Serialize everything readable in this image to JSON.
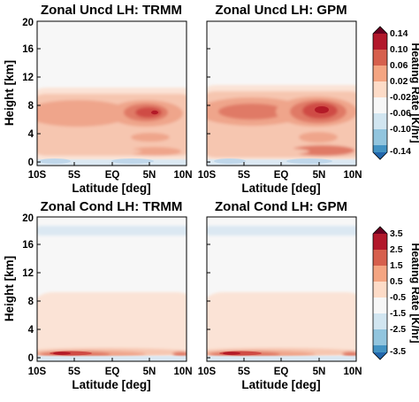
{
  "chart_data": [
    {
      "type": "heatmap",
      "panel": "top-left",
      "title": "Zonal Uncd LH: TRMM",
      "xlabel": "Latitude [deg]",
      "ylabel": "Height [km]",
      "x_ticks": [
        "10S",
        "5S",
        "EQ",
        "5N",
        "10N"
      ],
      "y_ticks": [
        "0",
        "4",
        "8",
        "12",
        "16",
        "20"
      ],
      "xlim": [
        -10,
        10
      ],
      "ylim": [
        -0.5,
        20
      ],
      "units": "K/hr",
      "features": [
        {
          "x": 4.5,
          "y": 7.5,
          "value": 0.13
        },
        {
          "x": -3.5,
          "y": 7.5,
          "value": 0.07
        },
        {
          "x": 5.0,
          "y": 4.0,
          "value": 0.07
        },
        {
          "x": 2.0,
          "y": 2.0,
          "value": 0.05
        }
      ]
    },
    {
      "type": "heatmap",
      "panel": "top-right",
      "title": "Zonal Uncd LH: GPM",
      "xlabel": "Latitude [deg]",
      "ylabel": "",
      "x_ticks": [
        "10S",
        "5S",
        "EQ",
        "5N",
        "10N"
      ],
      "y_ticks": [],
      "xlim": [
        -10,
        10
      ],
      "ylim": [
        -0.5,
        20
      ],
      "units": "K/hr",
      "features": [
        {
          "x": 5.0,
          "y": 7.5,
          "value": 0.14
        },
        {
          "x": -3.0,
          "y": 7.5,
          "value": 0.08
        },
        {
          "x": 5.0,
          "y": 4.0,
          "value": 0.07
        },
        {
          "x": 3.0,
          "y": 2.0,
          "value": 0.07
        }
      ]
    },
    {
      "type": "heatmap",
      "panel": "bottom-left",
      "title": "Zonal Cond LH: TRMM",
      "xlabel": "Latitude [deg]",
      "ylabel": "Height [km]",
      "x_ticks": [
        "10S",
        "5S",
        "EQ",
        "5N",
        "10N"
      ],
      "y_ticks": [
        "0",
        "4",
        "8",
        "12",
        "16",
        "20"
      ],
      "xlim": [
        -10,
        10
      ],
      "ylim": [
        -0.5,
        20
      ],
      "units": "K/hr",
      "features": [
        {
          "x": -6.0,
          "y": 1.0,
          "value": 3.0
        },
        {
          "x": 0.0,
          "y": 6.5,
          "value": 0.5
        },
        {
          "x": 0.0,
          "y": 18.5,
          "value": -0.5
        }
      ]
    },
    {
      "type": "heatmap",
      "panel": "bottom-right",
      "title": "Zonal Cond LH: GPM",
      "xlabel": "Latitude [deg]",
      "ylabel": "",
      "x_ticks": [
        "10S",
        "5S",
        "EQ",
        "5N",
        "10N"
      ],
      "y_ticks": [],
      "xlim": [
        -10,
        10
      ],
      "ylim": [
        -0.5,
        20
      ],
      "units": "K/hr",
      "features": [
        {
          "x": -6.0,
          "y": 1.0,
          "value": 3.0
        },
        {
          "x": 0.0,
          "y": 6.5,
          "value": 0.5
        },
        {
          "x": 0.0,
          "y": 18.5,
          "value": -0.5
        }
      ]
    }
  ],
  "colorbars": [
    {
      "label": "Heating Rate [K/hr]",
      "ticks": [
        "0.14",
        "0.10",
        "0.06",
        "0.02",
        "-0.02",
        "-0.06",
        "-0.10",
        "-0.14"
      ],
      "levels": [
        0.14,
        0.1,
        0.06,
        0.02,
        -0.02,
        -0.06,
        -0.1,
        -0.14
      ],
      "colors": [
        "#b2182b",
        "#d6604d",
        "#f4a582",
        "#fddbc7",
        "#f7f7f7",
        "#d1e5f0",
        "#92c5de",
        "#4393c3",
        "#2166ac"
      ]
    },
    {
      "label": "Heating Rate [K/hr]",
      "ticks": [
        "3.5",
        "2.5",
        "1.5",
        "0.5",
        "-0.5",
        "-1.5",
        "-2.5",
        "-3.5"
      ],
      "levels": [
        3.5,
        2.5,
        1.5,
        0.5,
        -0.5,
        -1.5,
        -2.5,
        -3.5
      ],
      "colors": [
        "#b2182b",
        "#d6604d",
        "#f4a582",
        "#fddbc7",
        "#f7f7f7",
        "#d1e5f0",
        "#92c5de",
        "#4393c3",
        "#2166ac"
      ]
    }
  ],
  "palette": {
    "neutral": "#f7f7f7",
    "warm": [
      "#fbe3d6",
      "#f6c6b0",
      "#efa58b",
      "#e07a66",
      "#cf4b45",
      "#b31a27"
    ],
    "cool": [
      "#dbe8f2",
      "#c0d7ea"
    ]
  }
}
